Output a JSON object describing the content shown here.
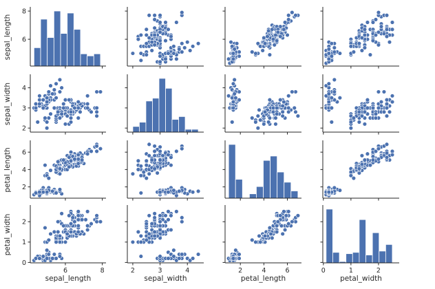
{
  "chart_data": {
    "type": "scatter",
    "title": "",
    "variables": [
      "sepal_length",
      "sepal_width",
      "petal_length",
      "petal_width"
    ],
    "ranges": {
      "sepal_length": [
        4.1,
        8.2
      ],
      "sepal_width": [
        1.8,
        4.6
      ],
      "petal_length": [
        0.7,
        7.2
      ],
      "petal_width": [
        -0.02,
        2.75
      ]
    },
    "ticks": {
      "sepal_length": [
        6,
        8
      ],
      "sepal_width": [
        2,
        3,
        4
      ],
      "petal_length": [
        2,
        4,
        6
      ],
      "petal_width": [
        0,
        1,
        2
      ]
    },
    "tick_labels": {
      "sepal_length": [
        "6",
        "8"
      ],
      "sepal_width": [
        "2",
        "3",
        "4"
      ],
      "petal_length": [
        "2",
        "4",
        "6"
      ],
      "petal_width": [
        "0",
        "1",
        "2"
      ]
    },
    "histograms": {
      "sepal_length": {
        "edges": [
          4.3,
          4.66,
          5.02,
          5.38,
          5.74,
          6.1,
          6.46,
          6.82,
          7.18,
          7.54,
          7.9
        ],
        "counts": [
          9,
          23,
          14,
          27,
          16,
          26,
          18,
          6,
          5,
          6
        ]
      },
      "sepal_width": {
        "edges": [
          2.0,
          2.24,
          2.48,
          2.72,
          2.96,
          3.2,
          3.44,
          3.68,
          3.92,
          4.16,
          4.4
        ],
        "counts": [
          4,
          7,
          22,
          24,
          38,
          31,
          9,
          11,
          2,
          2
        ]
      },
      "petal_length": {
        "edges": [
          1.0,
          1.59,
          2.18,
          2.77,
          3.36,
          3.95,
          4.54,
          5.13,
          5.72,
          6.31,
          6.9
        ],
        "counts": [
          37,
          13,
          0,
          3,
          8,
          26,
          29,
          18,
          11,
          5
        ]
      },
      "petal_width": {
        "edges": [
          0.1,
          0.34,
          0.58,
          0.82,
          1.06,
          1.3,
          1.54,
          1.78,
          2.02,
          2.26,
          2.5
        ],
        "counts": [
          41,
          8,
          1,
          7,
          8,
          33,
          6,
          23,
          9,
          14
        ]
      }
    },
    "points": {
      "sepal_length": [
        5.1,
        4.9,
        4.7,
        4.6,
        5.0,
        5.4,
        4.6,
        5.0,
        4.4,
        4.9,
        5.4,
        4.8,
        4.8,
        4.3,
        5.8,
        5.7,
        5.4,
        5.1,
        5.7,
        5.1,
        5.4,
        5.1,
        4.6,
        5.1,
        4.8,
        5.0,
        5.0,
        5.2,
        5.2,
        4.7,
        4.8,
        5.4,
        5.2,
        5.5,
        4.9,
        5.0,
        5.5,
        4.9,
        4.4,
        5.1,
        5.0,
        4.5,
        4.4,
        5.0,
        5.1,
        4.8,
        5.1,
        4.6,
        5.3,
        5.0,
        7.0,
        6.4,
        6.9,
        5.5,
        6.5,
        5.7,
        6.3,
        4.9,
        6.6,
        5.2,
        5.0,
        5.9,
        6.0,
        6.1,
        5.6,
        6.7,
        5.6,
        5.8,
        6.2,
        5.6,
        5.9,
        6.1,
        6.3,
        6.1,
        6.4,
        6.6,
        6.8,
        6.7,
        6.0,
        5.7,
        5.5,
        5.5,
        5.8,
        6.0,
        5.4,
        6.0,
        6.7,
        6.3,
        5.6,
        5.5,
        5.5,
        6.1,
        5.8,
        5.0,
        5.6,
        5.7,
        5.7,
        6.2,
        5.1,
        5.7,
        6.3,
        5.8,
        7.1,
        6.3,
        6.5,
        7.6,
        4.9,
        7.3,
        6.7,
        7.2,
        6.5,
        6.4,
        6.8,
        5.7,
        5.8,
        6.4,
        6.5,
        7.7,
        7.7,
        6.0,
        6.9,
        5.6,
        7.7,
        6.3,
        6.7,
        7.2,
        6.2,
        6.1,
        6.4,
        7.2,
        7.4,
        7.9,
        6.4,
        6.3,
        6.1,
        7.7,
        6.3,
        6.4,
        6.0,
        6.9,
        6.7,
        6.9,
        5.8,
        6.8,
        6.7,
        6.7,
        6.3,
        6.5,
        6.2,
        5.9
      ],
      "sepal_width": [
        3.5,
        3.0,
        3.2,
        3.1,
        3.6,
        3.9,
        3.4,
        3.4,
        2.9,
        3.1,
        3.7,
        3.4,
        3.0,
        3.0,
        4.0,
        4.4,
        3.9,
        3.5,
        3.8,
        3.8,
        3.4,
        3.7,
        3.6,
        3.3,
        3.4,
        3.0,
        3.4,
        3.5,
        3.4,
        3.2,
        3.1,
        3.4,
        4.1,
        4.2,
        3.1,
        3.2,
        3.5,
        3.6,
        3.0,
        3.4,
        3.5,
        2.3,
        3.2,
        3.5,
        3.8,
        3.0,
        3.8,
        3.2,
        3.7,
        3.3,
        3.2,
        3.2,
        3.1,
        2.3,
        2.8,
        2.8,
        3.3,
        2.4,
        2.9,
        2.7,
        2.0,
        3.0,
        2.2,
        2.9,
        2.9,
        3.1,
        3.0,
        2.7,
        2.2,
        2.5,
        3.2,
        2.8,
        2.5,
        2.8,
        2.9,
        3.0,
        2.8,
        3.0,
        2.9,
        2.6,
        2.4,
        2.4,
        2.7,
        2.7,
        3.0,
        3.4,
        3.1,
        2.3,
        3.0,
        2.5,
        2.6,
        3.0,
        2.6,
        2.3,
        2.7,
        3.0,
        2.9,
        2.9,
        2.5,
        2.8,
        3.3,
        2.7,
        3.0,
        2.9,
        3.0,
        3.0,
        2.5,
        2.9,
        2.5,
        3.6,
        3.2,
        2.7,
        3.0,
        2.5,
        2.8,
        3.2,
        3.0,
        3.8,
        2.6,
        2.2,
        3.2,
        2.8,
        2.8,
        2.7,
        3.3,
        3.2,
        2.8,
        3.0,
        2.8,
        3.0,
        2.8,
        3.8,
        2.8,
        2.8,
        2.6,
        3.0,
        3.4,
        3.1,
        3.0,
        3.1,
        3.1,
        3.1,
        2.7,
        3.2,
        3.3,
        3.0,
        2.5,
        3.0,
        3.4,
        3.0
      ],
      "petal_length": [
        1.4,
        1.4,
        1.3,
        1.5,
        1.4,
        1.7,
        1.4,
        1.5,
        1.4,
        1.5,
        1.5,
        1.6,
        1.4,
        1.1,
        1.2,
        1.5,
        1.3,
        1.4,
        1.7,
        1.5,
        1.7,
        1.5,
        1.0,
        1.7,
        1.9,
        1.6,
        1.6,
        1.5,
        1.4,
        1.6,
        1.6,
        1.5,
        1.5,
        1.4,
        1.5,
        1.2,
        1.3,
        1.4,
        1.3,
        1.5,
        1.3,
        1.3,
        1.3,
        1.6,
        1.9,
        1.4,
        1.6,
        1.4,
        1.5,
        1.4,
        4.7,
        4.5,
        4.9,
        4.0,
        4.6,
        4.5,
        4.7,
        3.3,
        4.6,
        3.9,
        3.5,
        4.2,
        4.0,
        4.7,
        3.6,
        4.4,
        4.5,
        4.1,
        4.5,
        3.9,
        4.8,
        4.0,
        4.9,
        4.7,
        4.3,
        4.4,
        4.8,
        5.0,
        4.5,
        3.5,
        3.8,
        3.7,
        3.9,
        5.1,
        4.5,
        4.5,
        4.7,
        4.4,
        4.1,
        4.0,
        4.4,
        4.6,
        4.0,
        3.3,
        4.2,
        4.2,
        4.2,
        4.3,
        3.0,
        4.1,
        6.0,
        5.1,
        5.9,
        5.6,
        5.8,
        6.6,
        4.5,
        6.3,
        5.8,
        6.1,
        5.1,
        5.3,
        5.5,
        5.0,
        5.1,
        5.3,
        5.5,
        6.7,
        6.9,
        5.0,
        5.7,
        4.9,
        6.7,
        4.9,
        5.7,
        6.0,
        4.8,
        4.9,
        5.6,
        5.8,
        6.1,
        6.4,
        5.6,
        5.1,
        5.6,
        6.1,
        5.6,
        5.5,
        4.8,
        5.4,
        5.6,
        5.1,
        5.1,
        5.9,
        5.7,
        5.2,
        5.0,
        5.2,
        5.4,
        5.1
      ],
      "petal_width": [
        0.2,
        0.2,
        0.2,
        0.2,
        0.2,
        0.4,
        0.3,
        0.2,
        0.2,
        0.1,
        0.2,
        0.2,
        0.1,
        0.1,
        0.2,
        0.4,
        0.4,
        0.3,
        0.3,
        0.3,
        0.2,
        0.4,
        0.2,
        0.5,
        0.2,
        0.2,
        0.4,
        0.2,
        0.2,
        0.2,
        0.2,
        0.4,
        0.1,
        0.2,
        0.2,
        0.2,
        0.2,
        0.1,
        0.2,
        0.2,
        0.3,
        0.3,
        0.2,
        0.6,
        0.4,
        0.3,
        0.2,
        0.2,
        0.2,
        0.2,
        1.4,
        1.5,
        1.5,
        1.3,
        1.5,
        1.3,
        1.6,
        1.0,
        1.3,
        1.4,
        1.0,
        1.5,
        1.0,
        1.4,
        1.3,
        1.4,
        1.5,
        1.0,
        1.5,
        1.1,
        1.8,
        1.3,
        1.5,
        1.2,
        1.3,
        1.4,
        1.4,
        1.7,
        1.5,
        1.0,
        1.1,
        1.0,
        1.2,
        1.6,
        1.5,
        1.6,
        1.5,
        1.3,
        1.3,
        1.3,
        1.2,
        1.4,
        1.2,
        1.0,
        1.3,
        1.2,
        1.3,
        1.3,
        1.1,
        1.3,
        2.5,
        1.9,
        2.1,
        1.8,
        2.2,
        2.1,
        1.7,
        1.8,
        1.8,
        2.5,
        2.0,
        1.9,
        2.1,
        2.0,
        2.4,
        2.3,
        1.8,
        2.2,
        2.3,
        1.5,
        2.3,
        2.0,
        2.0,
        1.8,
        2.1,
        1.8,
        1.8,
        1.8,
        2.1,
        1.6,
        1.9,
        2.0,
        2.2,
        1.5,
        1.4,
        2.3,
        2.4,
        1.8,
        1.8,
        2.1,
        2.4,
        2.3,
        1.9,
        2.3,
        2.5,
        2.3,
        1.9,
        2.0,
        2.3,
        1.8
      ]
    }
  },
  "colors": {
    "mark": "#4c72b0",
    "edge": "#ffffff",
    "axis": "#262626",
    "background": "#ffffff"
  }
}
